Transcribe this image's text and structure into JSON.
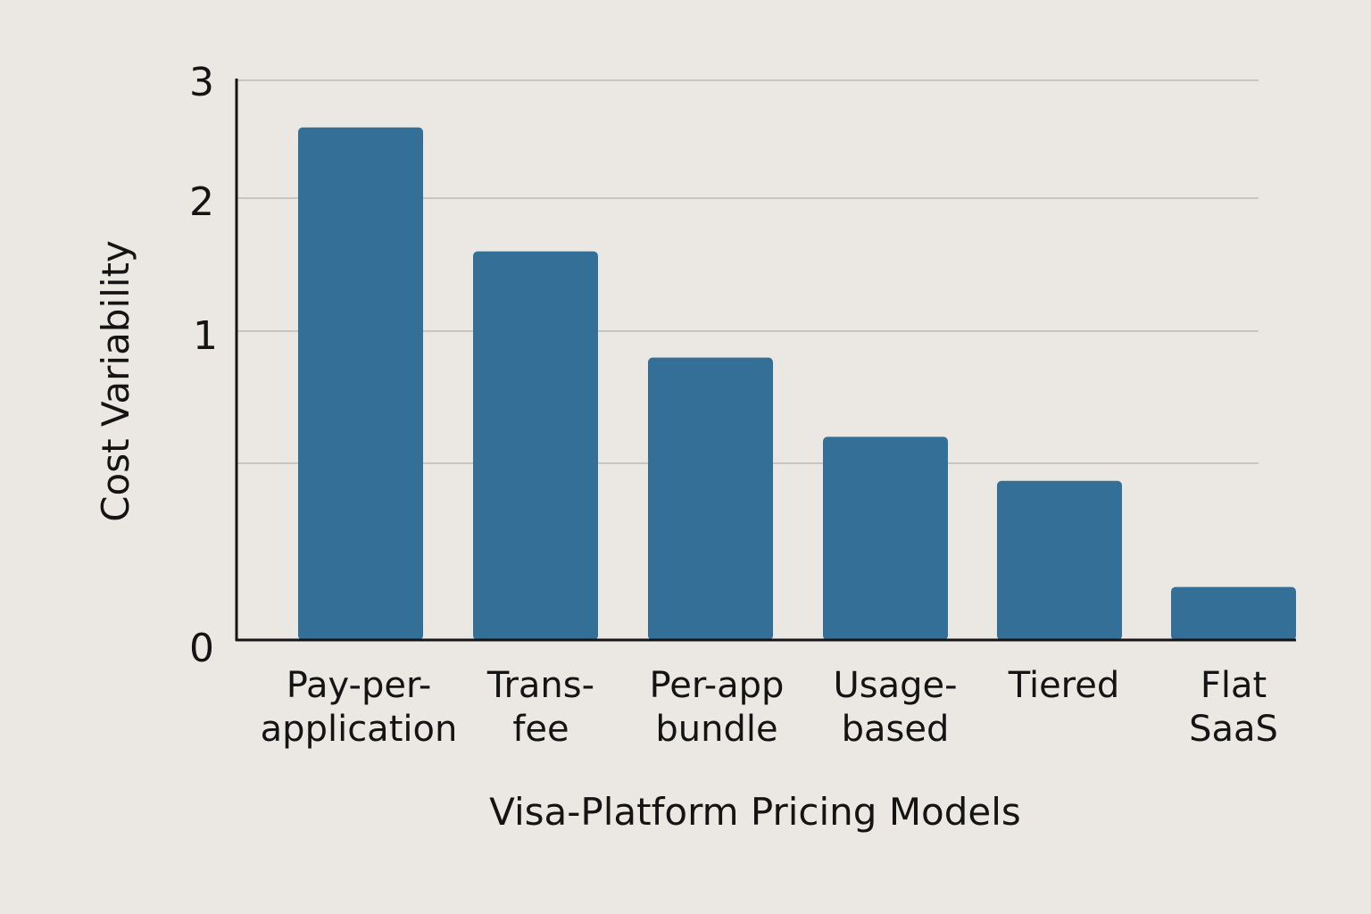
{
  "chart_data": {
    "type": "bar",
    "title": "",
    "xlabel": "Visa-Platform Pricing Models",
    "ylabel": "Cost Variability",
    "ylim": [
      0,
      3
    ],
    "y_tick_labels": [
      {
        "value": 0,
        "label": "0"
      },
      {
        "value": 1,
        "label": "1"
      },
      {
        "value": 2,
        "label": "2"
      },
      {
        "value": 3,
        "label": "3"
      }
    ],
    "gridlines": [
      0.5,
      1,
      2,
      3
    ],
    "grid": true,
    "legend": "none",
    "categories": [
      [
        "Pay-per-",
        "application"
      ],
      [
        "Trans-",
        "fee"
      ],
      [
        "Per-app",
        "bundle"
      ],
      [
        "Usage-",
        "based"
      ],
      [
        "Tiered"
      ],
      [
        "Flat",
        "SaaS"
      ]
    ],
    "values": [
      2.6,
      1.6,
      0.9,
      0.6,
      0.45,
      0.15
    ],
    "colors": {
      "bar": "#336f96",
      "grid": "#c9c6c1",
      "axis": "#151515",
      "background": "#ebe8e3"
    }
  }
}
